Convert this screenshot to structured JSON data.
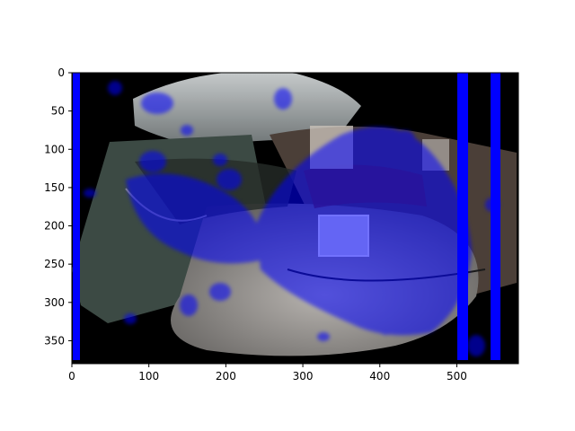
{
  "figure": {
    "description_type": "image-with-overlay",
    "x_ticks": [
      "0",
      "100",
      "200",
      "300",
      "400",
      "500"
    ],
    "y_ticks": [
      "0",
      "50",
      "100",
      "150",
      "200",
      "250",
      "300",
      "350"
    ],
    "xlim": [
      0,
      580
    ],
    "ylim": [
      380,
      0
    ],
    "colors": {
      "overlay": "#0000ff",
      "background": "#000000",
      "frame": "#000000"
    }
  }
}
